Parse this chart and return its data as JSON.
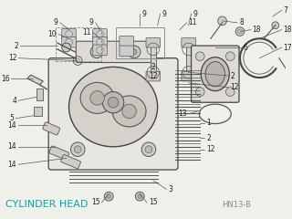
{
  "bg_color": "#f0f0eb",
  "title_text": "CYLINDER HEAD",
  "title_color": "#00aaaa",
  "title_fontsize": 8,
  "ref_text": "HN13-B",
  "ref_fontsize": 6,
  "lc": "#555555",
  "label_fontsize": 5.5,
  "label_color": "#222222"
}
